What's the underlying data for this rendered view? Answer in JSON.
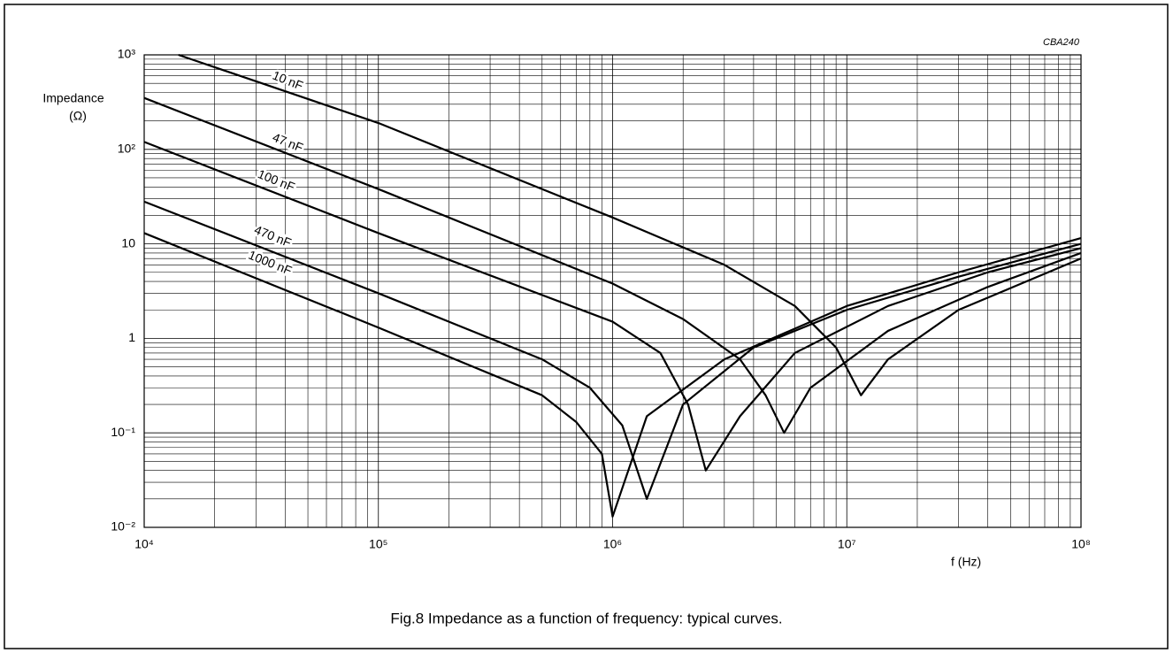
{
  "chart_data": {
    "type": "line",
    "caption": "Fig.8  Impedance as a function of frequency: typical curves.",
    "code": "CBA240",
    "y_label": [
      "Impedance",
      "(Ω)"
    ],
    "x_label": "f   (Hz)",
    "log_x": true,
    "log_y": true,
    "grid": true,
    "minor_grid": true,
    "xlim": [
      10000,
      100000000
    ],
    "ylim": [
      0.01,
      1000
    ],
    "xticks": [
      {
        "value": 10000,
        "label": "10⁴"
      },
      {
        "value": 100000,
        "label": "10⁵"
      },
      {
        "value": 1000000,
        "label": "10⁶"
      },
      {
        "value": 10000000,
        "label": "10⁷"
      },
      {
        "value": 100000000,
        "label": "10⁸"
      }
    ],
    "yticks": [
      {
        "value": 0.01,
        "label": "10⁻²"
      },
      {
        "value": 0.1,
        "label": "10⁻¹"
      },
      1,
      10,
      {
        "value": 100,
        "label": "10²"
      },
      {
        "value": 1000,
        "label": "10³"
      }
    ],
    "series": [
      {
        "name": "10 nF",
        "color": "#000000",
        "x": [
          14000,
          100000,
          1000000,
          3000000,
          6000000,
          9000000,
          11500000,
          15000000,
          30000000,
          100000000
        ],
        "values": [
          1000,
          190,
          19,
          6,
          2.2,
          0.8,
          0.25,
          0.6,
          2,
          7
        ]
      },
      {
        "name": "47 nF",
        "color": "#000000",
        "x": [
          10000,
          100000,
          1000000,
          2000000,
          3500000,
          4500000,
          5400000,
          7000000,
          15000000,
          40000000,
          100000000
        ],
        "values": [
          350,
          38,
          3.8,
          1.6,
          0.6,
          0.25,
          0.1,
          0.3,
          1.2,
          3.5,
          8
        ]
      },
      {
        "name": "100 nF",
        "color": "#000000",
        "x": [
          10000,
          100000,
          1000000,
          1600000,
          2100000,
          2500000,
          3500000,
          6000000,
          15000000,
          40000000,
          100000000
        ],
        "values": [
          120,
          13,
          1.5,
          0.7,
          0.2,
          0.04,
          0.15,
          0.7,
          2.2,
          5,
          9
        ]
      },
      {
        "name": "470 nF",
        "color": "#000000",
        "x": [
          10000,
          100000,
          500000,
          800000,
          1100000,
          1400000,
          2000000,
          4000000,
          10000000,
          30000000,
          100000000
        ],
        "values": [
          28,
          3,
          0.6,
          0.3,
          0.12,
          0.02,
          0.2,
          0.8,
          2,
          4.5,
          10
        ]
      },
      {
        "name": "1000 nF",
        "color": "#000000",
        "x": [
          10000,
          100000,
          500000,
          700000,
          900000,
          1000000,
          1400000,
          3000000,
          10000000,
          30000000,
          100000000
        ],
        "values": [
          13,
          1.3,
          0.25,
          0.13,
          0.06,
          0.013,
          0.15,
          0.6,
          2.2,
          5,
          11.5
        ]
      }
    ]
  }
}
